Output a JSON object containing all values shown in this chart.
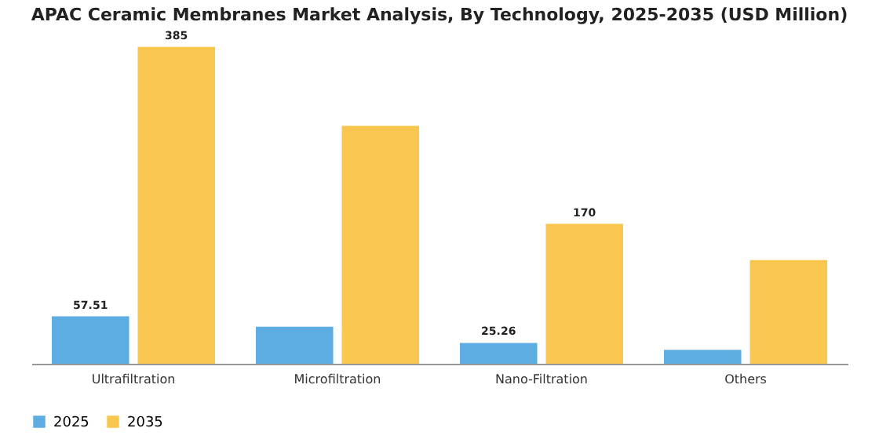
{
  "chart_data": {
    "type": "bar",
    "title": "APAC Ceramic Membranes Market Analysis, By Technology, 2025-2035 (USD Million)",
    "categories": [
      "Ultrafiltration",
      "Microfiltration",
      "Nano-Filtration",
      "Others"
    ],
    "legend": "bottom",
    "series": [
      {
        "name": "2025",
        "color": "#5dade2",
        "values": [
          57.51,
          45,
          25.26,
          17
        ],
        "value_labels": [
          "57.51",
          null,
          "25.26",
          null
        ]
      },
      {
        "name": "2035",
        "color": "#f9c74f",
        "values": [
          385,
          289,
          170,
          126
        ],
        "value_labels": [
          "385",
          null,
          "170",
          null
        ]
      }
    ]
  }
}
